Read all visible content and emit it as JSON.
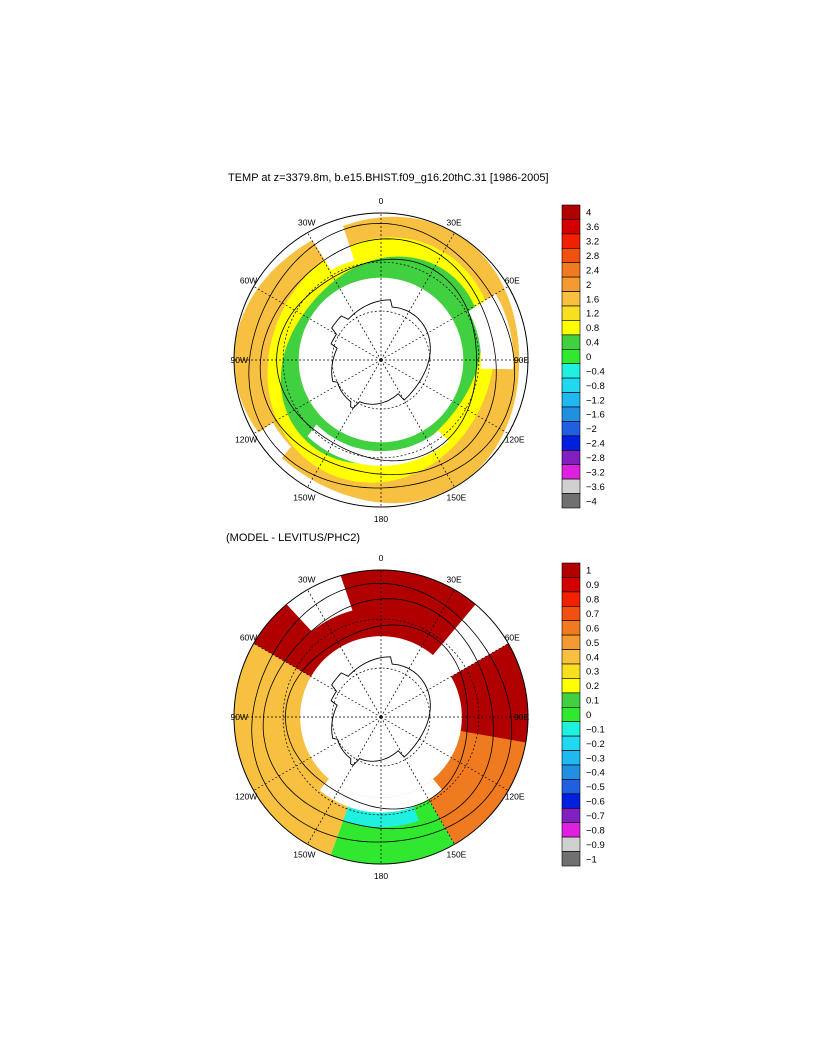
{
  "chart_data": [
    {
      "type": "heatmap",
      "projection": "south-polar-stereographic",
      "title": "TEMP at z=3379.8m, b.e15.BHIST.f09_g16.20thC.31 [1986-2005]",
      "longitude_labels": [
        "0",
        "30E",
        "60E",
        "90E",
        "120E",
        "150E",
        "180",
        "150W",
        "120W",
        "90W",
        "60W",
        "30W"
      ],
      "colorbar": {
        "levels": [
          "4",
          "3.6",
          "3.2",
          "2.8",
          "2.4",
          "2",
          "1.6",
          "1.2",
          "0.8",
          "0.4",
          "0",
          "−0.4",
          "−0.8",
          "−1.2",
          "−1.6",
          "−2",
          "−2.4",
          "−2.8",
          "−3.2",
          "−3.6",
          "−4"
        ],
        "colors": [
          "#b00000",
          "#d40000",
          "#f02000",
          "#f05010",
          "#f07a20",
          "#f59a30",
          "#f8c040",
          "#f8e020",
          "#ffff00",
          "#40d040",
          "#30e830",
          "#20f0e0",
          "#20d8f0",
          "#20b8f0",
          "#2090e0",
          "#2060e0",
          "#0020e0",
          "#8020c0",
          "#e020e0",
          "#d0d0d0",
          "#707070"
        ]
      },
      "region_fills": {
        "outer_ring": "#f8c040",
        "middle_ring": "#ffff00",
        "inner_ring": "#40d040",
        "pacific_patch": "#30e830",
        "no_data": "#ffffff"
      }
    },
    {
      "type": "heatmap",
      "projection": "south-polar-stereographic",
      "title": "(MODEL - LEVITUS/PHC2)",
      "longitude_labels": [
        "0",
        "30E",
        "60E",
        "90E",
        "120E",
        "150E",
        "180",
        "150W",
        "120W",
        "90W",
        "60W",
        "30W"
      ],
      "colorbar": {
        "levels": [
          "1",
          "0.9",
          "0.8",
          "0.7",
          "0.6",
          "0.5",
          "0.4",
          "0.3",
          "0.2",
          "0.1",
          "0",
          "−0.1",
          "−0.2",
          "−0.3",
          "−0.4",
          "−0.5",
          "−0.6",
          "−0.7",
          "−0.8",
          "−0.9",
          "−1"
        ],
        "colors": [
          "#b00000",
          "#d40000",
          "#f02000",
          "#f05010",
          "#f07a20",
          "#f59a30",
          "#f8c040",
          "#f8e020",
          "#ffff00",
          "#40d040",
          "#30e830",
          "#20f0e0",
          "#20d8f0",
          "#20b8f0",
          "#2090e0",
          "#2060e0",
          "#0020e0",
          "#8020c0",
          "#e020e0",
          "#d0d0d0",
          "#707070"
        ]
      },
      "region_fills": {
        "atlantic_indian_sector": "#b00000",
        "indian_east_sector": "#f07a20",
        "pacific_sector": "#f8c040",
        "ross_sea_band": "#20f0e0",
        "ross_sea_green": "#30e830",
        "no_data": "#ffffff"
      }
    }
  ]
}
